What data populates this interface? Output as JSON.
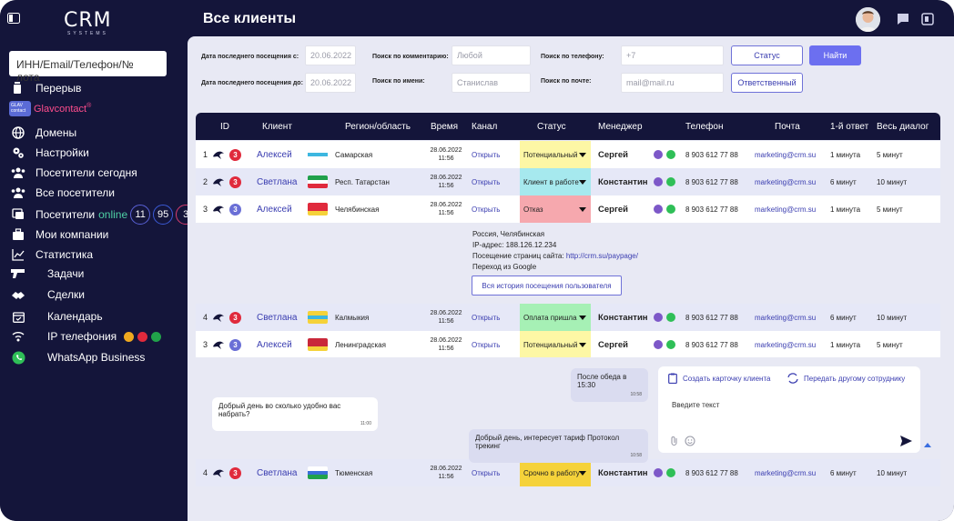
{
  "app": {
    "logo": "CRM",
    "logo_sub": "SYSTEMS",
    "title": "Все клиенты"
  },
  "sidebar": {
    "search_placeholder": "ИНН/Email/Телефон/№ лота",
    "break_label": "Перерыв",
    "glav_box": "GLAV contact",
    "glav_text": "Glavcontact",
    "items": [
      {
        "label": "Домены",
        "icon": "globe-icon"
      },
      {
        "label": "Настройки",
        "icon": "gears-icon"
      },
      {
        "label": "Посетители сегодня",
        "icon": "users-icon"
      },
      {
        "label": "Все посетители",
        "icon": "users-icon"
      },
      {
        "label": "Посетители",
        "icon": "chat-icon"
      },
      {
        "label": "Мои компании",
        "icon": "briefcase-icon"
      },
      {
        "label": "Статистика",
        "icon": "chart-icon"
      }
    ],
    "online_word": "online",
    "online_counts": [
      "11",
      "95",
      "3"
    ],
    "sub_items": [
      {
        "label": "Задачи",
        "icon": "gun-icon"
      },
      {
        "label": "Сделки",
        "icon": "handshake-icon"
      },
      {
        "label": "Календарь",
        "icon": "calendar-icon"
      },
      {
        "label": "IP телефония",
        "icon": "phone-wifi-icon"
      },
      {
        "label": "WhatsApp Business",
        "icon": "whatsapp-icon"
      }
    ]
  },
  "filters": {
    "date_from_label": "Дата последнего посещения с:",
    "date_from_value": "20.06.2022",
    "date_to_label": "Дата последнего посещения до:",
    "date_to_value": "20.06.2022",
    "comment_label": "Поиск по комментарию:",
    "comment_placeholder": "Любой",
    "name_label": "Поиск по имени:",
    "name_placeholder": "Станислав",
    "phone_label": "Поиск по телефону:",
    "phone_placeholder": "+7",
    "mail_label": "Поиск по почте:",
    "mail_placeholder": "mail@mail.ru",
    "status_button": "Статус",
    "responsible_button": "Ответственный",
    "find_button": "Найти"
  },
  "table": {
    "headers": [
      "ID",
      "Клиент",
      "Регион/область",
      "Время",
      "Канал",
      "Статус",
      "Менеджер",
      "Телефон",
      "Почта",
      "1-й ответ",
      "Весь диалог"
    ],
    "rows": [
      {
        "id": "1",
        "count": "3",
        "count_color": "#e02a3c",
        "client": "Алексей",
        "region": "Самарская",
        "time": "28.06.2022",
        "time2": "11:56",
        "channel": "Открыть",
        "status": "Потенциальный",
        "status_color": "#fdf7a5",
        "manager": "Сергей",
        "phone": "8 903 612 77 88",
        "mail": "marketing@crm.su",
        "first": "1 минута",
        "dialog": "5 минут"
      },
      {
        "id": "2",
        "count": "3",
        "count_color": "#e02a3c",
        "client": "Светлана",
        "region": "Респ. Татарстан",
        "time": "28.06.2022",
        "time2": "11:56",
        "channel": "Открыть",
        "status": "Клиент в работе",
        "status_color": "#a6e9ee",
        "manager": "Константин",
        "phone": "8 903 612 77 88",
        "mail": "marketing@crm.su",
        "first": "6 минут",
        "dialog": "10 минут"
      },
      {
        "id": "3",
        "count": "3",
        "count_color": "#6a6fd6",
        "client": "Алексей",
        "region": "Челябинская",
        "time": "28.06.2022",
        "time2": "11:56",
        "channel": "Открыть",
        "status": "Отказ",
        "status_color": "#f6a8ae",
        "manager": "Сергей",
        "phone": "8 903 612 77 88",
        "mail": "marketing@crm.su",
        "first": "1 минута",
        "dialog": "5 минут"
      },
      {
        "id": "4",
        "count": "3",
        "count_color": "#e02a3c",
        "client": "Светлана",
        "region": "Калмыкия",
        "time": "28.06.2022",
        "time2": "11:56",
        "channel": "Открыть",
        "status": "Оплата пришла",
        "status_color": "#a6f0b5",
        "manager": "Константин",
        "phone": "8 903 612 77 88",
        "mail": "marketing@crm.su",
        "first": "6 минут",
        "dialog": "10 минут"
      },
      {
        "id": "3",
        "count": "3",
        "count_color": "#6a6fd6",
        "client": "Алексей",
        "region": "Ленинградская",
        "time": "28.06.2022",
        "time2": "11:56",
        "channel": "Открыть",
        "status": "Потенциальный",
        "status_color": "#fdf7a5",
        "manager": "Сергей",
        "phone": "8 903 612 77 88",
        "mail": "marketing@crm.su",
        "first": "1 минута",
        "dialog": "5 минут"
      },
      {
        "id": "4",
        "count": "3",
        "count_color": "#e02a3c",
        "client": "Светлана",
        "region": "Тюменская",
        "time": "28.06.2022",
        "time2": "11:56",
        "channel": "Открыть",
        "status": "Срочно в работу",
        "status_color": "#f5d23a",
        "manager": "Константин",
        "phone": "8 903 612 77 88",
        "mail": "marketing@crm.su",
        "first": "6 минут",
        "dialog": "10 минут"
      }
    ]
  },
  "info": {
    "line1": "Россия, Челябинская",
    "line2": "IP-адрес: 188.126.12.234",
    "line3_prefix": "Посещение страниц сайта:",
    "line3_url": "http://crm.su/paypage/",
    "line4": "Переход из Google",
    "history_button": "Вся история посещения пользователя"
  },
  "chat": {
    "msg1": "После обеда в 15:30",
    "msg1_time": "10:58",
    "msg2": "Добрый день во сколько удобно вас набрать?",
    "msg2_time": "11:00",
    "msg3": "Добрый день, интересует тариф Протокол трекинг",
    "msg3_time": "10:58",
    "create_card": "Создать карточку клиента",
    "transfer": "Передать другому сотруднику",
    "input_placeholder": "Введите текст"
  }
}
